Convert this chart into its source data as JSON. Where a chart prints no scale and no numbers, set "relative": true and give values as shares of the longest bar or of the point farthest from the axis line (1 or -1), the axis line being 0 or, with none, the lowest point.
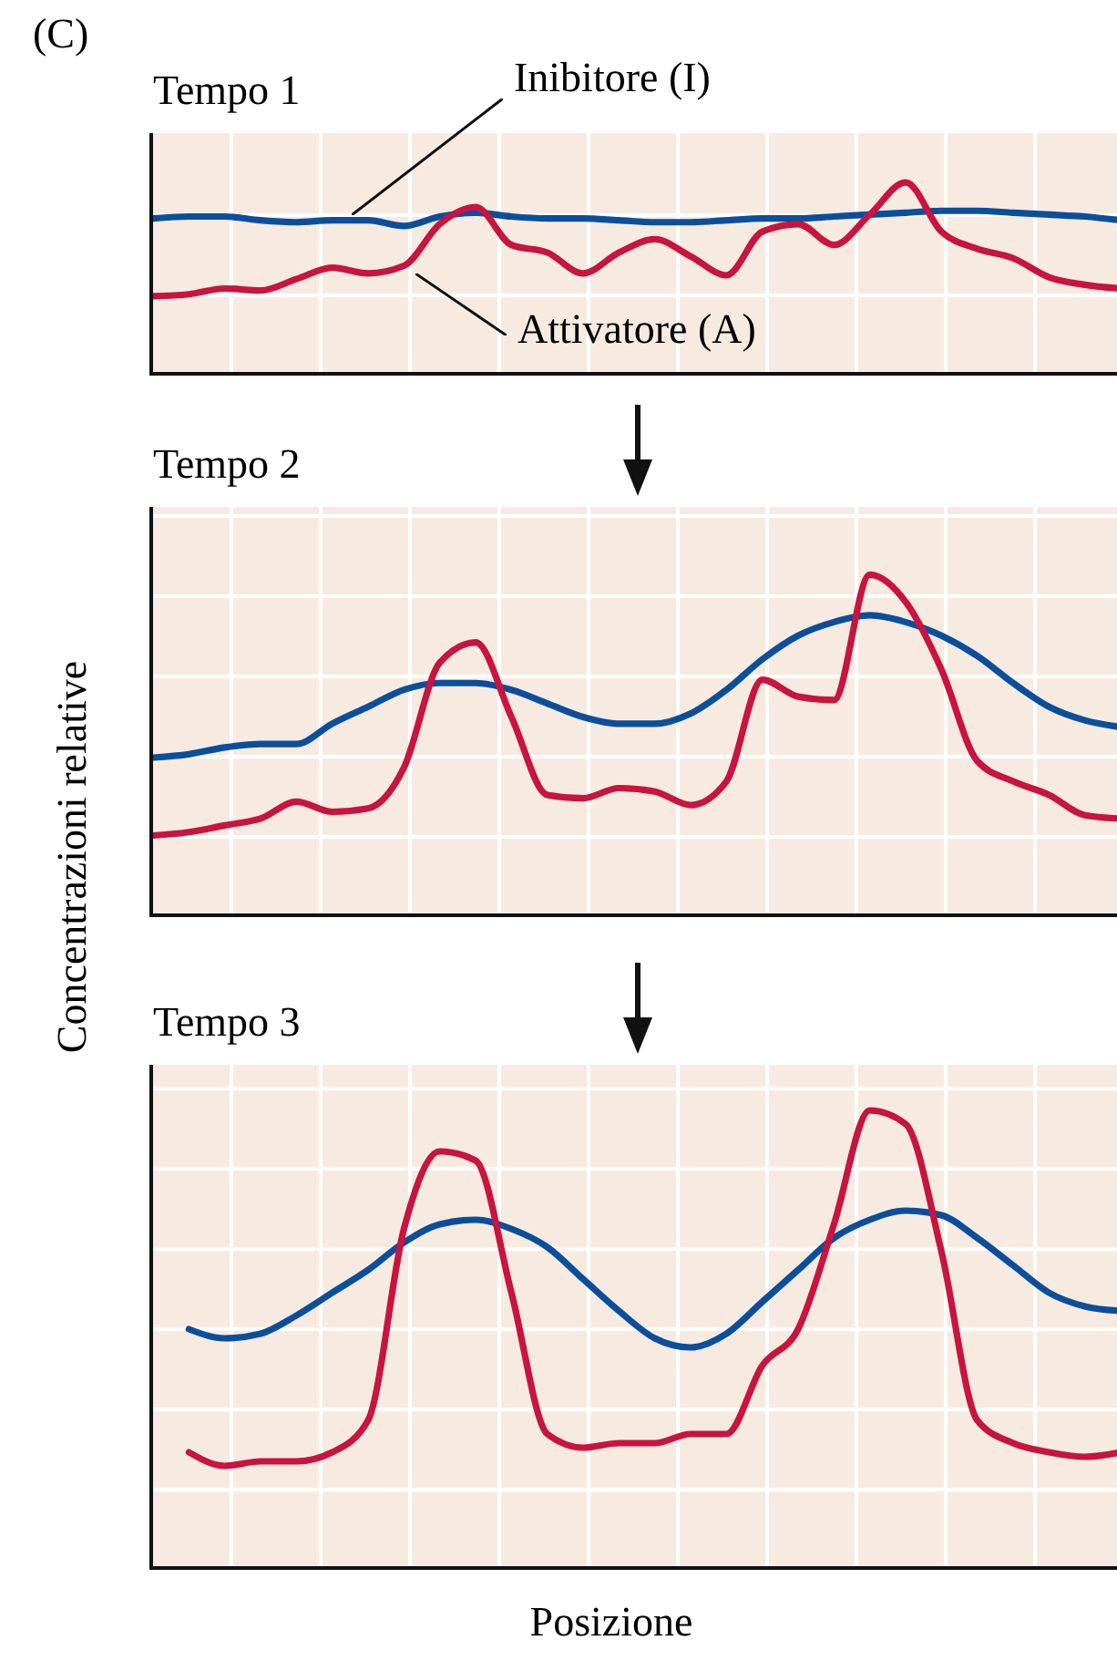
{
  "chart_data": [
    {
      "type": "line",
      "title": "Tempo 1",
      "relative": true,
      "grid": true,
      "annotations": [
        "(C)"
      ],
      "categories": [
        null,
        null,
        null,
        null,
        null,
        null,
        null,
        null,
        null,
        null,
        null,
        null,
        null,
        null,
        null,
        null,
        null,
        null,
        null,
        null,
        null,
        null,
        null,
        null,
        null,
        null,
        null,
        null
      ],
      "series": [
        {
          "name": "Inibitore (I)",
          "color": "#0b4f9c",
          "values": [
            0.81,
            0.82,
            0.82,
            0.8,
            0.79,
            0.8,
            0.8,
            0.77,
            0.82,
            0.84,
            0.82,
            0.81,
            0.81,
            0.8,
            0.79,
            0.79,
            0.8,
            0.81,
            0.81,
            0.82,
            0.83,
            0.84,
            0.85,
            0.85,
            0.84,
            0.83,
            0.82,
            0.8
          ]
        },
        {
          "name": "Attivatore (A)",
          "color": "#c8143f",
          "values": [
            0.4,
            0.41,
            0.44,
            0.43,
            0.49,
            0.55,
            0.52,
            0.56,
            0.78,
            0.87,
            0.67,
            0.63,
            0.52,
            0.63,
            0.7,
            0.61,
            0.51,
            0.74,
            0.78,
            0.67,
            0.83,
            1.0,
            0.74,
            0.65,
            0.6,
            0.5,
            0.46,
            0.44
          ]
        }
      ]
    },
    {
      "type": "line",
      "title": "Tempo 2",
      "ylabel": "Concentrazioni relative",
      "relative": true,
      "grid": true,
      "categories": [
        null,
        null,
        null,
        null,
        null,
        null,
        null,
        null,
        null,
        null,
        null,
        null,
        null,
        null,
        null,
        null,
        null,
        null,
        null,
        null,
        null,
        null,
        null,
        null,
        null,
        null,
        null,
        null
      ],
      "series": [
        {
          "color": "#0b4f9c",
          "values": [
            0.46,
            0.47,
            0.49,
            0.5,
            0.5,
            0.56,
            0.61,
            0.66,
            0.68,
            0.68,
            0.66,
            0.62,
            0.58,
            0.56,
            0.56,
            0.59,
            0.66,
            0.75,
            0.82,
            0.86,
            0.88,
            0.86,
            0.82,
            0.76,
            0.68,
            0.61,
            0.57,
            0.55
          ]
        },
        {
          "color": "#c8143f",
          "values": [
            0.23,
            0.24,
            0.26,
            0.28,
            0.33,
            0.3,
            0.31,
            0.43,
            0.74,
            0.8,
            0.58,
            0.35,
            0.34,
            0.37,
            0.36,
            0.32,
            0.39,
            0.69,
            0.64,
            0.63,
            1.0,
            0.92,
            0.72,
            0.45,
            0.39,
            0.35,
            0.29,
            0.28
          ]
        }
      ]
    },
    {
      "type": "line",
      "title": "Tempo 3",
      "xlabel": "Posizione",
      "relative": true,
      "grid": true,
      "categories": [
        null,
        null,
        null,
        null,
        null,
        null,
        null,
        null,
        null,
        null,
        null,
        null,
        null,
        null,
        null,
        null,
        null,
        null,
        null,
        null,
        null,
        null,
        null,
        null,
        null,
        null,
        null,
        null
      ],
      "series": [
        {
          "color": "#0b4f9c",
          "values": [
            null,
            0.52,
            0.5,
            0.51,
            0.55,
            0.6,
            0.65,
            0.71,
            0.75,
            0.76,
            0.74,
            0.7,
            0.63,
            0.56,
            0.5,
            0.48,
            0.51,
            0.58,
            0.65,
            0.72,
            0.76,
            0.78,
            0.77,
            0.72,
            0.66,
            0.6,
            0.57,
            0.56
          ]
        },
        {
          "color": "#c8143f",
          "values": [
            null,
            0.25,
            0.22,
            0.23,
            0.23,
            0.25,
            0.32,
            0.74,
            0.91,
            0.89,
            0.6,
            0.29,
            0.26,
            0.27,
            0.27,
            0.29,
            0.29,
            0.44,
            0.52,
            0.75,
            1.0,
            0.97,
            0.69,
            0.32,
            0.27,
            0.25,
            0.24,
            0.25
          ]
        }
      ]
    }
  ]
}
